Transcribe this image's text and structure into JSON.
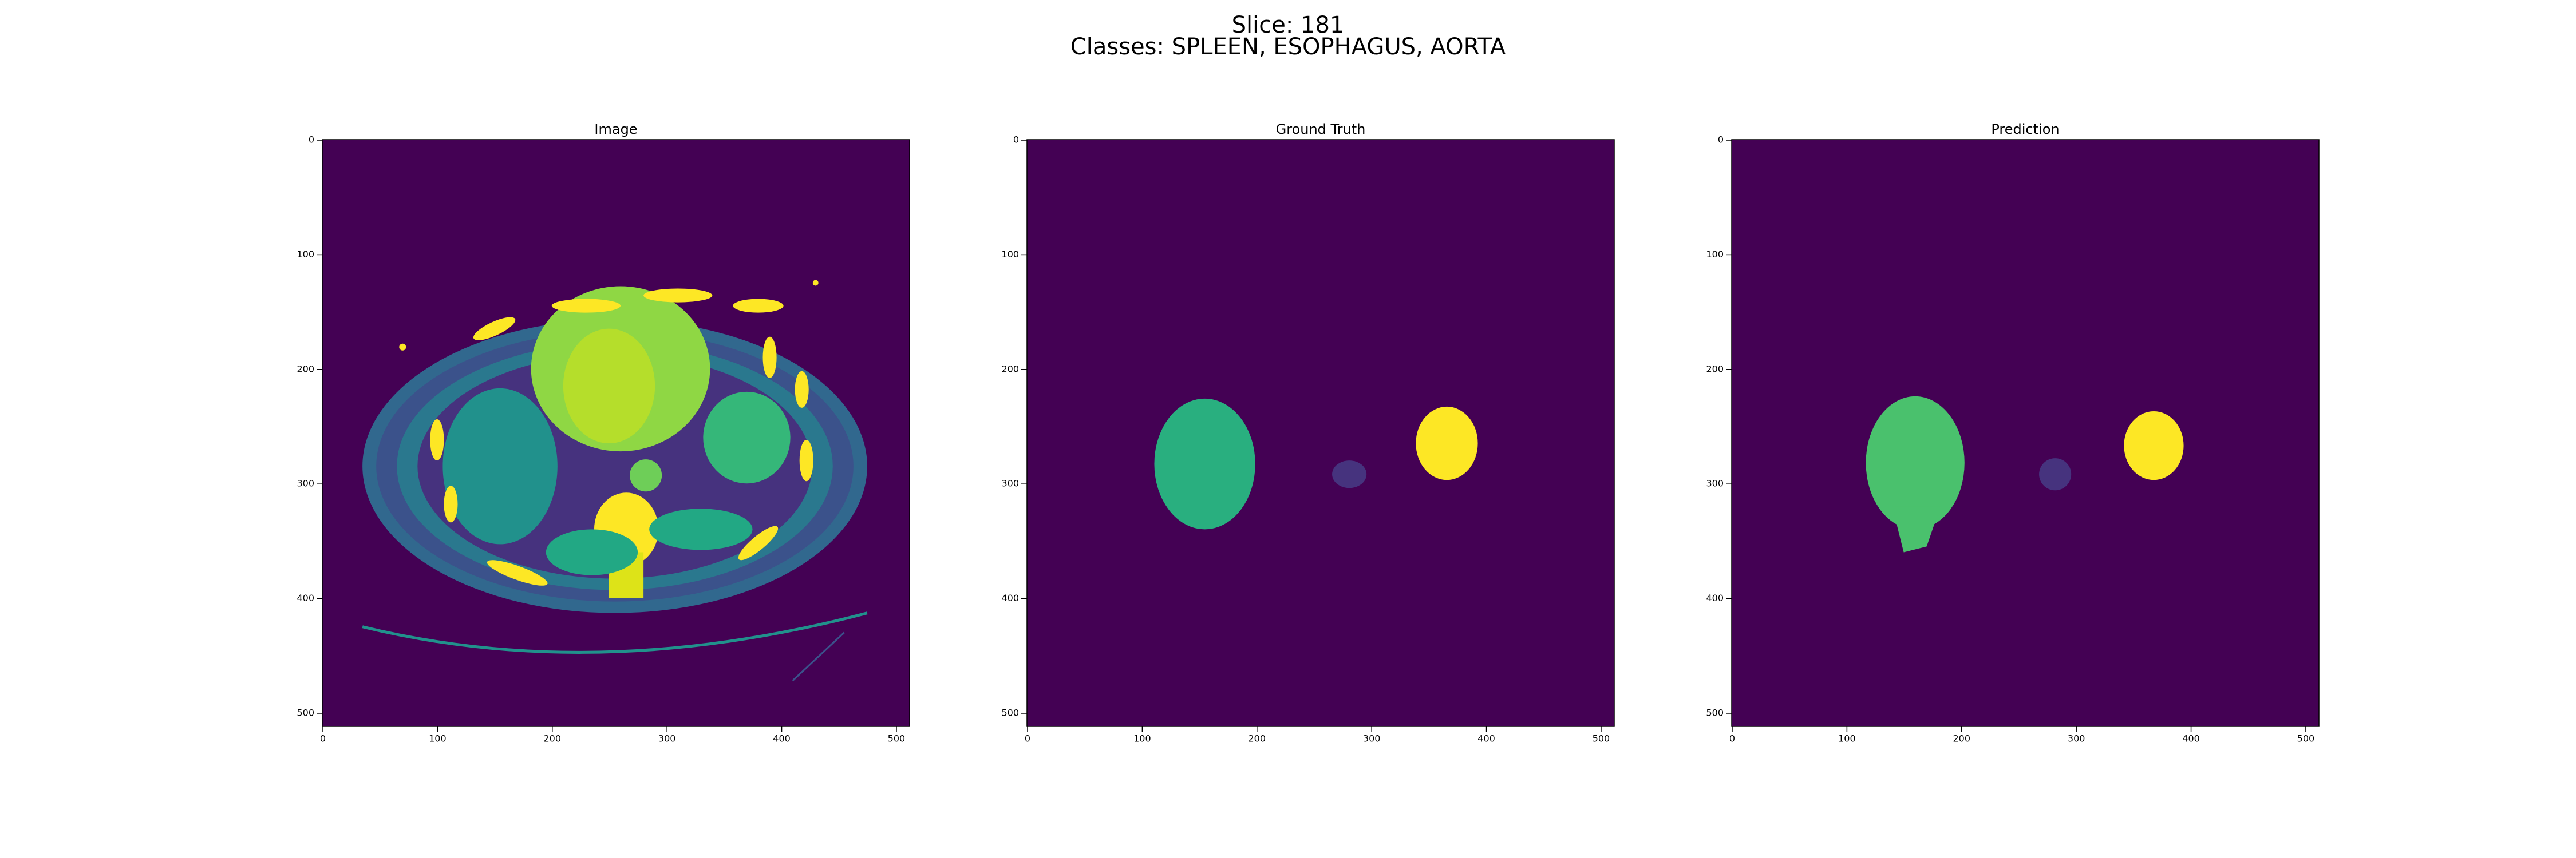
{
  "figure": {
    "title_lines": [
      "Slice: 181",
      "Classes: SPLEEN, ESOPHAGUS, AORTA"
    ]
  },
  "chart_data": [
    {
      "type": "image",
      "title": "Image",
      "xlim": [
        -0.5,
        511.5
      ],
      "ylim": [
        511.5,
        -0.5
      ],
      "xticks": [
        0,
        100,
        200,
        300,
        400,
        500
      ],
      "yticks": [
        0,
        100,
        200,
        300,
        400,
        500
      ]
    },
    {
      "type": "image",
      "title": "Ground Truth",
      "xlim": [
        -0.5,
        511.5
      ],
      "ylim": [
        511.5,
        -0.5
      ],
      "xticks": [
        0,
        100,
        200,
        300,
        400,
        500
      ],
      "yticks": [
        0,
        100,
        200,
        300,
        400,
        500
      ]
    },
    {
      "type": "image",
      "title": "Prediction",
      "xlim": [
        -0.5,
        511.5
      ],
      "ylim": [
        511.5,
        -0.5
      ],
      "xticks": [
        0,
        100,
        200,
        300,
        400,
        500
      ],
      "yticks": [
        0,
        100,
        200,
        300,
        400,
        500
      ]
    }
  ]
}
